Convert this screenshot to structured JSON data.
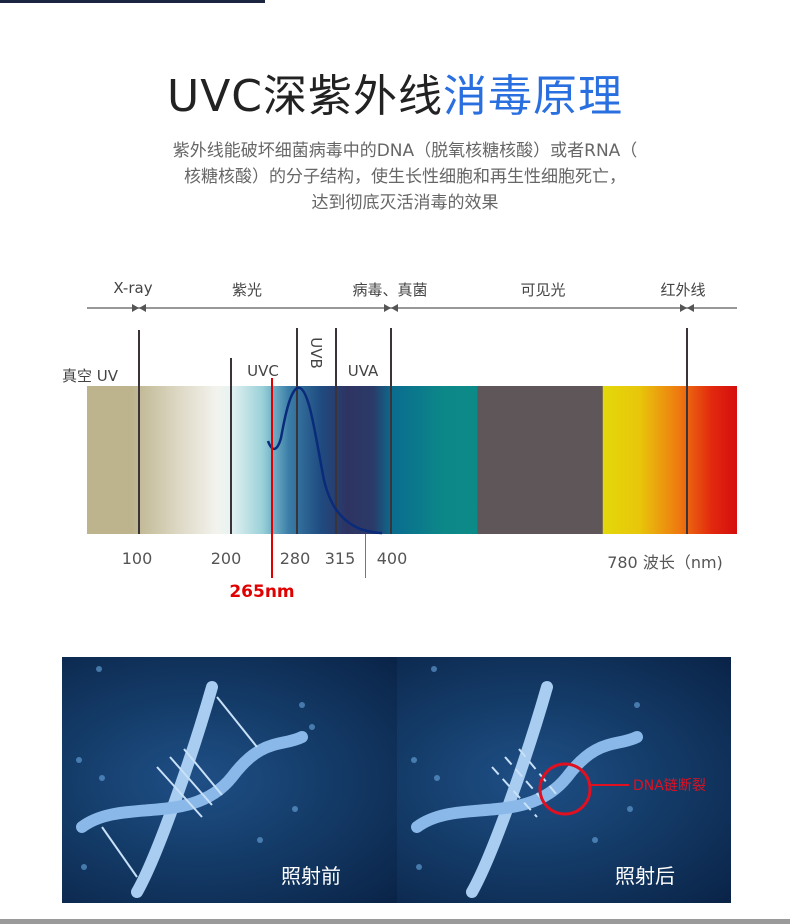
{
  "title": {
    "part1": "UVC深紫外线",
    "part2": "消毒原理"
  },
  "description": [
    "紫外线能破坏细菌病毒中的DNA（脱氧核糖核酸）或者RNA（",
    "核糖核酸）的分子结构，使生长性细胞和再生性细胞死亡，",
    "达到彻底灭活消毒的效果"
  ],
  "spectrum": {
    "regions": [
      "X-ray",
      "紫光",
      "病毒、真菌",
      "可见光",
      "红外线"
    ],
    "bands": {
      "vacuum": "真空 UV",
      "uvc": "UVC",
      "uvb": "UVB",
      "uva": "UVA"
    },
    "ticks": [
      "100",
      "200",
      "280",
      "315",
      "400",
      "780 波长（nm)"
    ],
    "marker": "265nm",
    "marker_color": "#e00000",
    "curve_color": "#0a2a7a"
  },
  "images": {
    "before": "照射前",
    "after": "照射后",
    "annotation": "DNA链断裂",
    "annotation_color": "#e01020"
  }
}
